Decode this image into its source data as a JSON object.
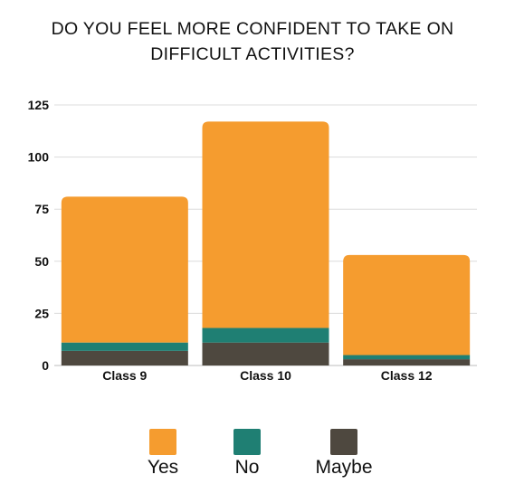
{
  "chart_data": {
    "type": "bar",
    "stacked": true,
    "title_lines": [
      "DO YOU FEEL MORE CONFIDENT TO TAKE ON",
      "DIFFICULT ACTIVITIES?"
    ],
    "categories": [
      "Class 9",
      "Class 10",
      "Class 12"
    ],
    "series": [
      {
        "name": "Maybe",
        "color": "#4e483f",
        "values": [
          7,
          11,
          3
        ]
      },
      {
        "name": "No",
        "color": "#1f7f73",
        "values": [
          4,
          7,
          2
        ]
      },
      {
        "name": "Yes",
        "color": "#f59c2f",
        "values": [
          70,
          99,
          48
        ]
      }
    ],
    "ylim": [
      0,
      125
    ],
    "yticks": [
      "0",
      "25",
      "50",
      "75",
      "100",
      "125"
    ],
    "grid": true,
    "legend_position": "bottom"
  },
  "legend": {
    "yes_label": "Yes",
    "no_label": "No",
    "maybe_label": "Maybe"
  },
  "colors": {
    "yes": "#f59c2f",
    "no": "#1f7f73",
    "maybe": "#4e483f"
  }
}
